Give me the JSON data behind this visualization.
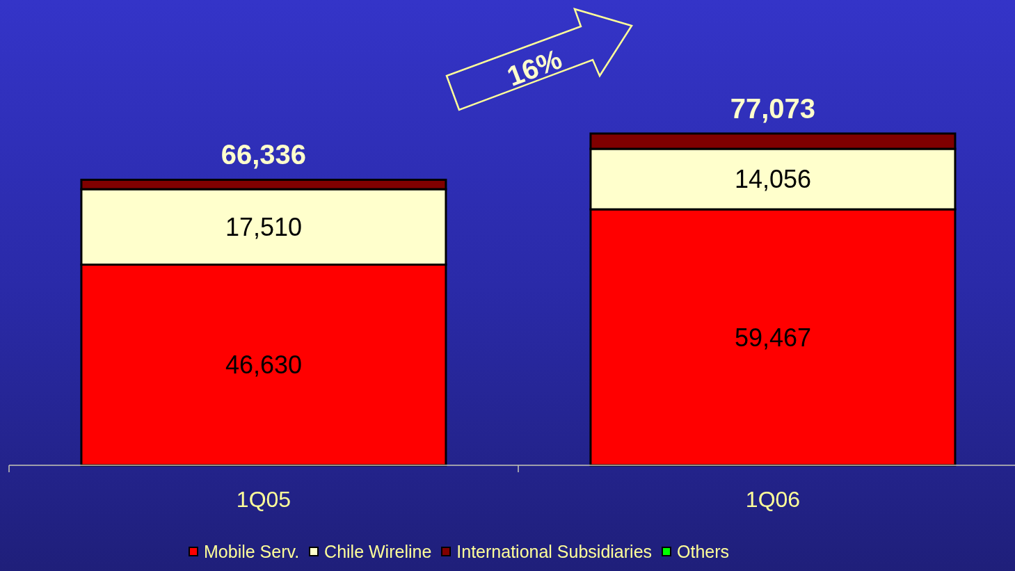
{
  "chart_data": {
    "type": "bar",
    "stacked": true,
    "categories": [
      "1Q05",
      "1Q06"
    ],
    "series": [
      {
        "name": "Mobile Serv.",
        "color": "#ff0000",
        "values": [
          46630,
          59467
        ],
        "value_labels": [
          "46,630",
          "59,467"
        ]
      },
      {
        "name": "Chile Wireline",
        "color": "#ffffcc",
        "values": [
          17510,
          14056
        ],
        "value_labels": [
          "17,510",
          "14,056"
        ]
      },
      {
        "name": "International Subsidiaries",
        "color": "#800000",
        "values": [
          2196,
          3550
        ]
      },
      {
        "name": "Others",
        "color": "#00ff00",
        "values": [
          null,
          null
        ]
      }
    ],
    "totals": [
      "66,336",
      "77,073"
    ],
    "annotations": [
      "16%"
    ],
    "legend": "bottom"
  }
}
